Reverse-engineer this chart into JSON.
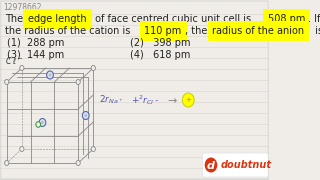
{
  "bg_color": "#f0ede8",
  "panel_color": "#f8f6f0",
  "id_text": "12978662",
  "id_color": "#888888",
  "id_fontsize": 5.5,
  "line_color": "#d8d4cc",
  "text_color": "#222222",
  "hl_color": "#ffff00",
  "options": [
    [
      "(1)  288 pm",
      "(2)   398 pm"
    ],
    [
      "(3)  144 pm",
      "(4)   618 pm"
    ]
  ],
  "cube_color": "#888888",
  "cube_lw": 0.6,
  "corner_r": 2.5,
  "face_r": 4.0,
  "corner_color": "#aaaaaa",
  "face_color_big": "#5577aa",
  "face_color_small": "#448844",
  "formula_color": "#5566bb",
  "answer_circle_color": "#ffff00",
  "doubtnut_red": "#dd3311",
  "logo_bg": "#ffffff"
}
